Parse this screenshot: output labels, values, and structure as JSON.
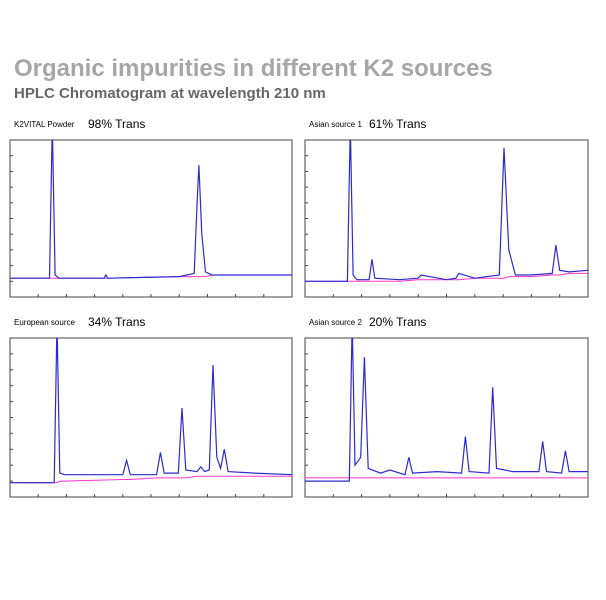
{
  "header": {
    "title": "Organic impurities in different K2 sources",
    "subtitle": "HPLC Chromatogram at wavelength 210 nm"
  },
  "chart_data": [
    {
      "type": "line",
      "label": "K2VITAL Powder",
      "trans": "98% Trans",
      "xlim": [
        0,
        30
      ],
      "ylim": [
        0,
        100
      ],
      "x": [
        0,
        4.2,
        4.5,
        4.8,
        5.2,
        10,
        10.2,
        10.4,
        18,
        19.6,
        19.9,
        20.1,
        20.4,
        20.8,
        21.5,
        30
      ],
      "series": [
        {
          "color": "#2b2bd0",
          "values": [
            12,
            12,
            110,
            14,
            12,
            12,
            14,
            12,
            13,
            15,
            60,
            84,
            40,
            16,
            14,
            14
          ]
        },
        {
          "color": "#ff33cc",
          "values": [
            12,
            12,
            12,
            12,
            12,
            12,
            12,
            12,
            13,
            13,
            13,
            13,
            13,
            13,
            14,
            14
          ]
        }
      ]
    },
    {
      "type": "line",
      "label": "Asian source 1",
      "trans": "61% Trans",
      "xlim": [
        0,
        30
      ],
      "ylim": [
        0,
        100
      ],
      "x": [
        0,
        4.5,
        4.8,
        5.1,
        5.5,
        6.8,
        7.1,
        7.4,
        10,
        12,
        12.3,
        15,
        16,
        16.3,
        18,
        20.6,
        21.1,
        21.6,
        22.3,
        24,
        26.2,
        26.6,
        27,
        28,
        30
      ],
      "series": [
        {
          "color": "#2b2bd0",
          "values": [
            10,
            10,
            110,
            14,
            11,
            11,
            24,
            12,
            11,
            12,
            14,
            11,
            12,
            15,
            12,
            14,
            95,
            30,
            14,
            14,
            15,
            33,
            17,
            16,
            17
          ]
        },
        {
          "color": "#ff33cc",
          "values": [
            10,
            10,
            10,
            10,
            10,
            10,
            10,
            10,
            10,
            11,
            11,
            11,
            11,
            11,
            12,
            12,
            12,
            13,
            13,
            13,
            14,
            14,
            14,
            15,
            15
          ]
        }
      ]
    },
    {
      "type": "line",
      "label": "European source",
      "trans": "34% Trans",
      "xlim": [
        0,
        30
      ],
      "ylim": [
        0,
        100
      ],
      "x": [
        0,
        4.7,
        5.0,
        5.3,
        5.8,
        12,
        12.4,
        12.8,
        15.6,
        16.0,
        16.4,
        17.9,
        18.3,
        18.7,
        19.9,
        20.3,
        20.7,
        21.2,
        21.6,
        22.0,
        22.4,
        22.8,
        23.2,
        26,
        30
      ],
      "series": [
        {
          "color": "#2b2bd0",
          "values": [
            9,
            9,
            110,
            15,
            14,
            14,
            23,
            14,
            14,
            28,
            15,
            15,
            56,
            17,
            16,
            19,
            16,
            17,
            83,
            25,
            18,
            30,
            16,
            15,
            14
          ]
        },
        {
          "color": "#ff33cc",
          "values": [
            9,
            9,
            9,
            10,
            10,
            11,
            11,
            11,
            12,
            12,
            12,
            12,
            12,
            12,
            13,
            13,
            13,
            13,
            13,
            13,
            13,
            13,
            13,
            13,
            13
          ]
        }
      ]
    },
    {
      "type": "line",
      "label": "Asian source 2",
      "trans": "20% Trans",
      "xlim": [
        0,
        30
      ],
      "ylim": [
        0,
        100
      ],
      "x": [
        0,
        4.7,
        5.0,
        5.3,
        5.9,
        6.3,
        6.7,
        8,
        9,
        10.6,
        11.0,
        11.4,
        14,
        16.6,
        17.0,
        17.4,
        19.5,
        19.9,
        20.3,
        22,
        24.8,
        25.2,
        25.6,
        27.2,
        27.6,
        28,
        30
      ],
      "series": [
        {
          "color": "#2b2bd0",
          "values": [
            10,
            10,
            110,
            20,
            25,
            88,
            18,
            15,
            17,
            14,
            25,
            15,
            16,
            15,
            38,
            16,
            15,
            69,
            18,
            16,
            16,
            35,
            16,
            15,
            29,
            16,
            16
          ]
        },
        {
          "color": "#ff33cc",
          "values": [
            12,
            12,
            12,
            12,
            12,
            12,
            12,
            12,
            12,
            12,
            12,
            12,
            12,
            12,
            12,
            12,
            12,
            12,
            12,
            12,
            12,
            12,
            12,
            12,
            12,
            12,
            12
          ]
        }
      ]
    }
  ]
}
